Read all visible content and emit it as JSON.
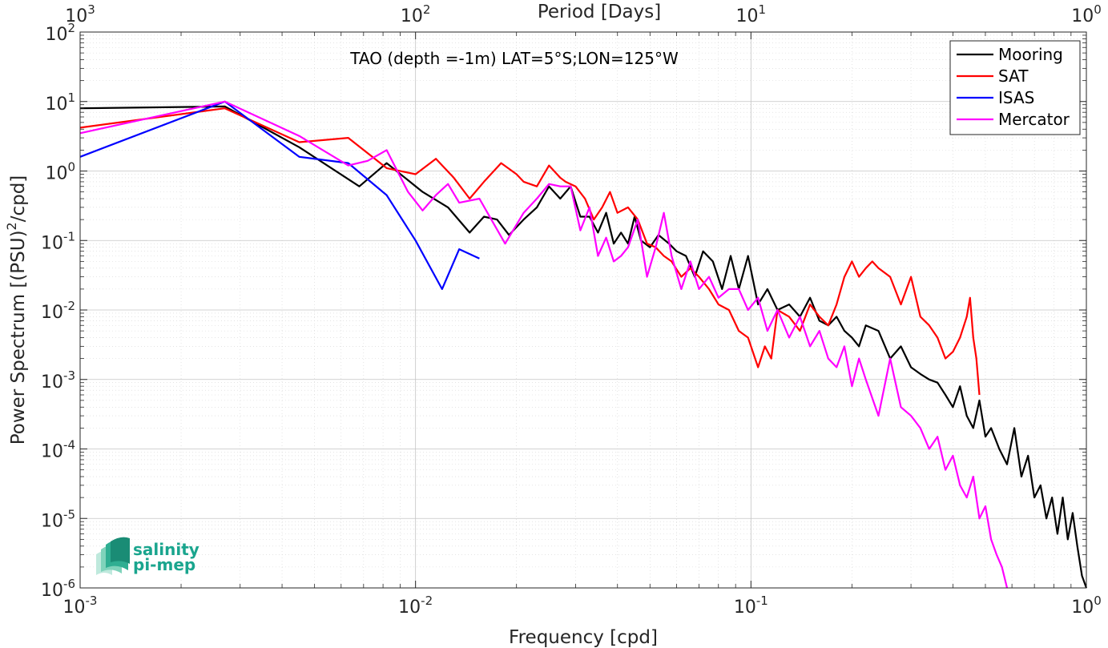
{
  "chart_data": {
    "type": "line",
    "annotation": "TAO (depth =-1m) LAT=5°S;LON=125°W",
    "xlabel": "Frequency [cpd]",
    "ylabel": "Power Spectrum [(PSU)²/cpd]",
    "ylabel_parts": {
      "before": "Power Spectrum [(PSU)",
      "sup": "2",
      "after": "/cpd]"
    },
    "top_xlabel": "Period [Days]",
    "x_scale": "log",
    "y_scale": "log",
    "xlim": [
      0.001,
      1
    ],
    "ylim": [
      1e-06,
      100
    ],
    "grid": true,
    "minor_grid": true,
    "legend_position": "top-right",
    "x_ticks": [
      {
        "base": "10",
        "exp": "-3"
      },
      {
        "base": "10",
        "exp": "-2"
      },
      {
        "base": "10",
        "exp": "-1"
      },
      {
        "base": "10",
        "exp": "0"
      }
    ],
    "top_ticks": [
      {
        "base": "10",
        "exp": "3"
      },
      {
        "base": "10",
        "exp": "2"
      },
      {
        "base": "10",
        "exp": "1"
      },
      {
        "base": "10",
        "exp": "0"
      }
    ],
    "y_ticks": [
      {
        "base": "10",
        "exp": "-6"
      },
      {
        "base": "10",
        "exp": "-5"
      },
      {
        "base": "10",
        "exp": "-4"
      },
      {
        "base": "10",
        "exp": "-3"
      },
      {
        "base": "10",
        "exp": "-2"
      },
      {
        "base": "10",
        "exp": "-1"
      },
      {
        "base": "10",
        "exp": "0"
      },
      {
        "base": "10",
        "exp": "1"
      },
      {
        "base": "10",
        "exp": "2"
      }
    ],
    "series": [
      {
        "name": "Mooring",
        "color": "#000000",
        "x": [
          0.001,
          0.0027,
          0.0045,
          0.0068,
          0.0082,
          0.0105,
          0.0125,
          0.0145,
          0.016,
          0.0175,
          0.019,
          0.021,
          0.023,
          0.025,
          0.027,
          0.029,
          0.031,
          0.033,
          0.035,
          0.037,
          0.039,
          0.041,
          0.043,
          0.045,
          0.047,
          0.05,
          0.053,
          0.057,
          0.06,
          0.064,
          0.068,
          0.072,
          0.077,
          0.082,
          0.087,
          0.092,
          0.098,
          0.105,
          0.112,
          0.12,
          0.13,
          0.14,
          0.15,
          0.16,
          0.17,
          0.18,
          0.19,
          0.2,
          0.21,
          0.22,
          0.24,
          0.26,
          0.28,
          0.3,
          0.32,
          0.34,
          0.36,
          0.38,
          0.4,
          0.42,
          0.44,
          0.46,
          0.48,
          0.5,
          0.52,
          0.55,
          0.58,
          0.61,
          0.64,
          0.67,
          0.7,
          0.73,
          0.76,
          0.79,
          0.82,
          0.85,
          0.88,
          0.91,
          0.94,
          0.97,
          1.0
        ],
        "y": [
          8.0,
          8.5,
          2.2,
          0.6,
          1.3,
          0.5,
          0.3,
          0.13,
          0.22,
          0.2,
          0.12,
          0.2,
          0.3,
          0.6,
          0.4,
          0.6,
          0.22,
          0.22,
          0.13,
          0.25,
          0.09,
          0.13,
          0.09,
          0.22,
          0.1,
          0.08,
          0.12,
          0.09,
          0.07,
          0.06,
          0.03,
          0.07,
          0.05,
          0.02,
          0.06,
          0.02,
          0.06,
          0.012,
          0.02,
          0.01,
          0.012,
          0.008,
          0.015,
          0.007,
          0.006,
          0.008,
          0.005,
          0.004,
          0.003,
          0.006,
          0.005,
          0.002,
          0.003,
          0.0015,
          0.0012,
          0.001,
          0.0009,
          0.0006,
          0.0004,
          0.0008,
          0.0003,
          0.0002,
          0.0005,
          0.00015,
          0.0002,
          0.0001,
          6e-05,
          0.0002,
          4e-05,
          8e-05,
          2e-05,
          3e-05,
          1e-05,
          2e-05,
          6e-06,
          2e-05,
          5e-06,
          1.2e-05,
          4e-06,
          1.5e-06,
          1e-06
        ]
      },
      {
        "name": "SAT",
        "color": "#ff0000",
        "x": [
          0.001,
          0.0027,
          0.0045,
          0.0063,
          0.0082,
          0.01,
          0.0115,
          0.013,
          0.0145,
          0.016,
          0.018,
          0.02,
          0.021,
          0.023,
          0.025,
          0.027,
          0.028,
          0.03,
          0.032,
          0.034,
          0.036,
          0.038,
          0.04,
          0.043,
          0.046,
          0.049,
          0.052,
          0.055,
          0.058,
          0.062,
          0.066,
          0.07,
          0.075,
          0.08,
          0.086,
          0.092,
          0.098,
          0.105,
          0.11,
          0.115,
          0.12,
          0.13,
          0.14,
          0.15,
          0.16,
          0.17,
          0.18,
          0.19,
          0.2,
          0.21,
          0.22,
          0.23,
          0.24,
          0.26,
          0.28,
          0.3,
          0.32,
          0.34,
          0.36,
          0.38,
          0.4,
          0.42,
          0.44,
          0.45,
          0.46,
          0.47,
          0.48
        ],
        "y": [
          4.2,
          8.0,
          2.6,
          3.0,
          1.1,
          0.9,
          1.5,
          0.8,
          0.4,
          0.7,
          1.3,
          0.9,
          0.7,
          0.6,
          1.2,
          0.8,
          0.7,
          0.6,
          0.4,
          0.2,
          0.3,
          0.5,
          0.25,
          0.3,
          0.2,
          0.09,
          0.08,
          0.06,
          0.05,
          0.03,
          0.04,
          0.03,
          0.02,
          0.012,
          0.01,
          0.005,
          0.004,
          0.0015,
          0.003,
          0.002,
          0.01,
          0.008,
          0.005,
          0.012,
          0.008,
          0.006,
          0.012,
          0.03,
          0.05,
          0.03,
          0.04,
          0.05,
          0.04,
          0.03,
          0.012,
          0.03,
          0.008,
          0.006,
          0.004,
          0.002,
          0.0025,
          0.004,
          0.008,
          0.015,
          0.004,
          0.002,
          0.0006
        ]
      },
      {
        "name": "ISAS",
        "color": "#0000ff",
        "x": [
          0.001,
          0.0027,
          0.0045,
          0.0063,
          0.0082,
          0.01,
          0.012,
          0.0135,
          0.0155
        ],
        "y": [
          1.6,
          10.0,
          1.6,
          1.3,
          0.45,
          0.1,
          0.02,
          0.075,
          0.055
        ]
      },
      {
        "name": "Mercator",
        "color": "#ff00ff",
        "x": [
          0.001,
          0.0027,
          0.0045,
          0.0063,
          0.0072,
          0.0082,
          0.0095,
          0.0105,
          0.0115,
          0.0125,
          0.0135,
          0.0155,
          0.0185,
          0.021,
          0.023,
          0.025,
          0.027,
          0.029,
          0.031,
          0.033,
          0.035,
          0.037,
          0.039,
          0.041,
          0.043,
          0.046,
          0.049,
          0.052,
          0.055,
          0.058,
          0.062,
          0.066,
          0.07,
          0.075,
          0.08,
          0.086,
          0.092,
          0.098,
          0.105,
          0.112,
          0.12,
          0.13,
          0.14,
          0.15,
          0.16,
          0.17,
          0.18,
          0.19,
          0.2,
          0.21,
          0.22,
          0.24,
          0.26,
          0.28,
          0.3,
          0.32,
          0.34,
          0.36,
          0.38,
          0.4,
          0.42,
          0.44,
          0.46,
          0.48,
          0.5,
          0.52,
          0.54,
          0.56,
          0.58
        ],
        "y": [
          3.5,
          10.0,
          3.2,
          1.2,
          1.4,
          2.0,
          0.5,
          0.27,
          0.45,
          0.65,
          0.35,
          0.4,
          0.09,
          0.25,
          0.4,
          0.65,
          0.6,
          0.6,
          0.14,
          0.3,
          0.06,
          0.11,
          0.05,
          0.06,
          0.08,
          0.2,
          0.03,
          0.08,
          0.25,
          0.06,
          0.02,
          0.05,
          0.02,
          0.03,
          0.015,
          0.02,
          0.02,
          0.01,
          0.015,
          0.005,
          0.01,
          0.004,
          0.008,
          0.003,
          0.005,
          0.002,
          0.0015,
          0.003,
          0.0008,
          0.002,
          0.001,
          0.0003,
          0.002,
          0.0004,
          0.0003,
          0.0002,
          0.0001,
          0.00015,
          5e-05,
          8e-05,
          3e-05,
          2e-05,
          4e-05,
          1e-05,
          1.5e-05,
          5e-06,
          3e-06,
          2e-06,
          1e-06
        ]
      }
    ]
  },
  "logo": {
    "line1": "salinity",
    "line2": "pi-mep",
    "color": "#1aa58e"
  }
}
